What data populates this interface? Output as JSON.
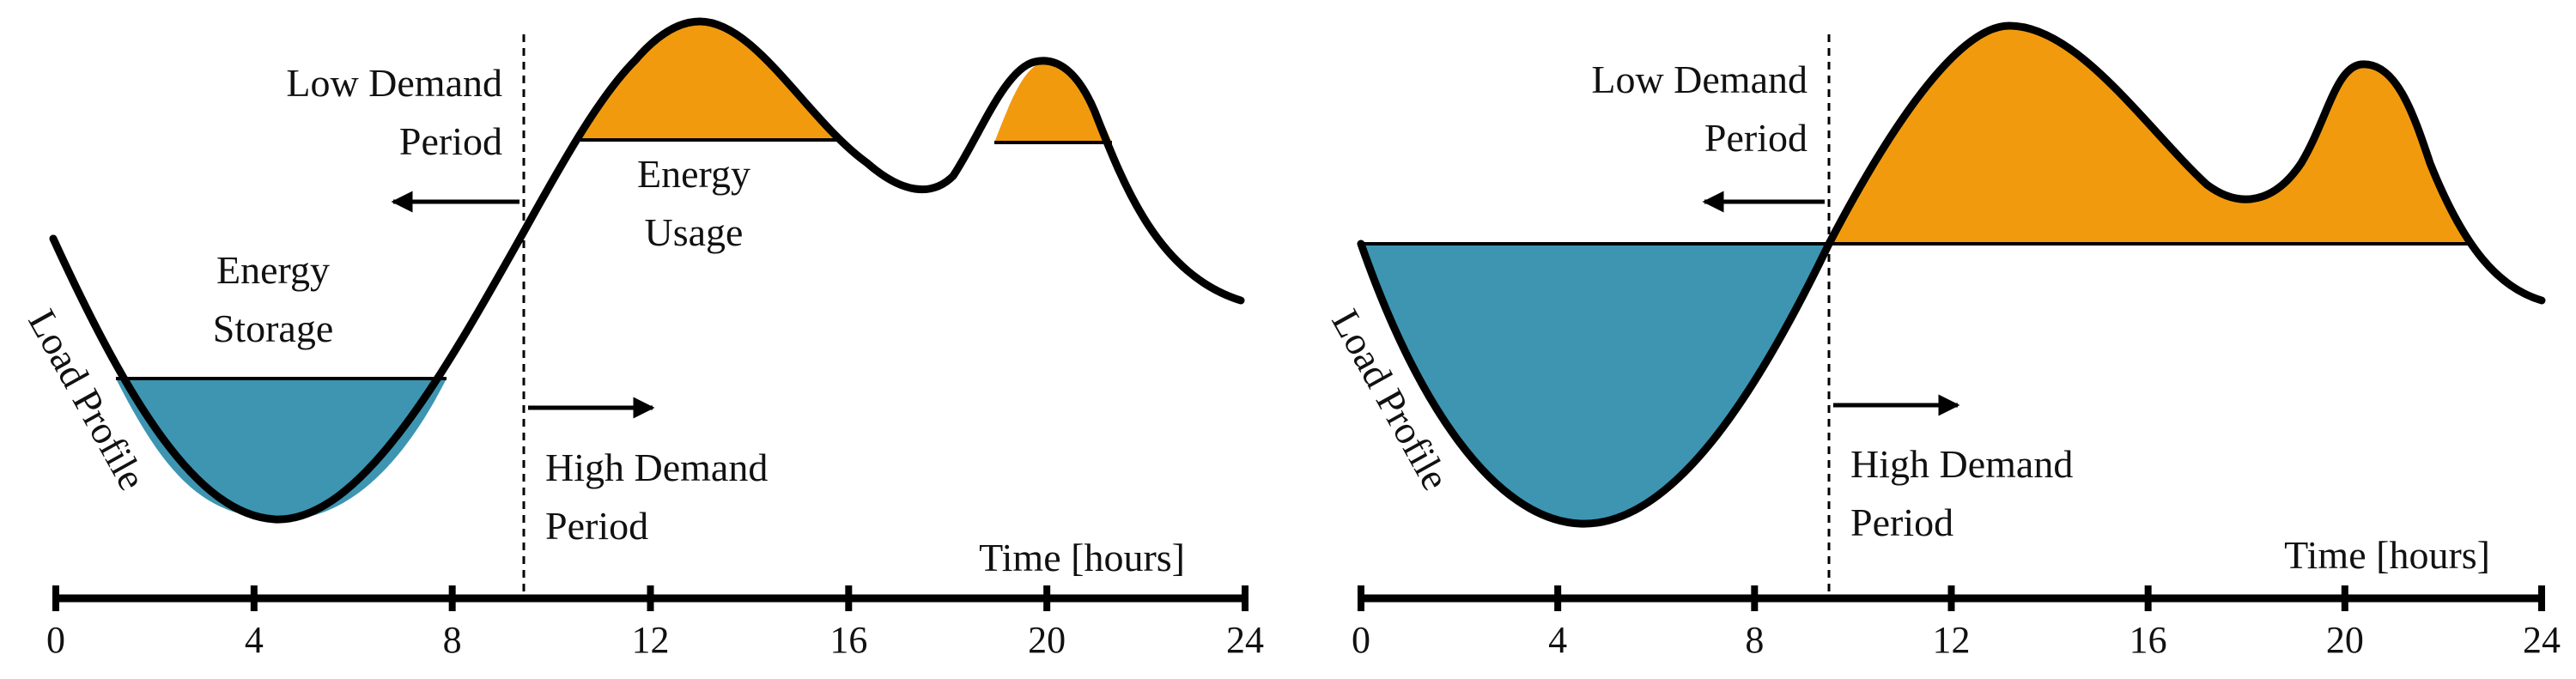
{
  "colors": {
    "storage_fill": "#3d95b2",
    "usage_fill": "#f29a0e",
    "curve": "#000000",
    "axis": "#000000"
  },
  "axis": {
    "unit_label": "Time [hours]",
    "ticks": [
      "0",
      "4",
      "8",
      "12",
      "16",
      "20",
      "24"
    ]
  },
  "panels": [
    {
      "id": "left",
      "labels": {
        "low_demand_line1": "Low Demand",
        "low_demand_line2": "Period",
        "high_demand_line1": "High Demand",
        "high_demand_line2": "Period",
        "storage_line1": "Energy",
        "storage_line2": "Storage",
        "usage_line1": "Energy",
        "usage_line2": "Usage",
        "load_profile": "Load Profile",
        "time_label": "Time [hours]"
      }
    },
    {
      "id": "right",
      "labels": {
        "low_demand_line1": "Low Demand",
        "low_demand_line2": "Period",
        "high_demand_line1": "High Demand",
        "high_demand_line2": "Period",
        "load_profile": "Load Profile",
        "time_label": "Time [hours]"
      }
    }
  ]
}
